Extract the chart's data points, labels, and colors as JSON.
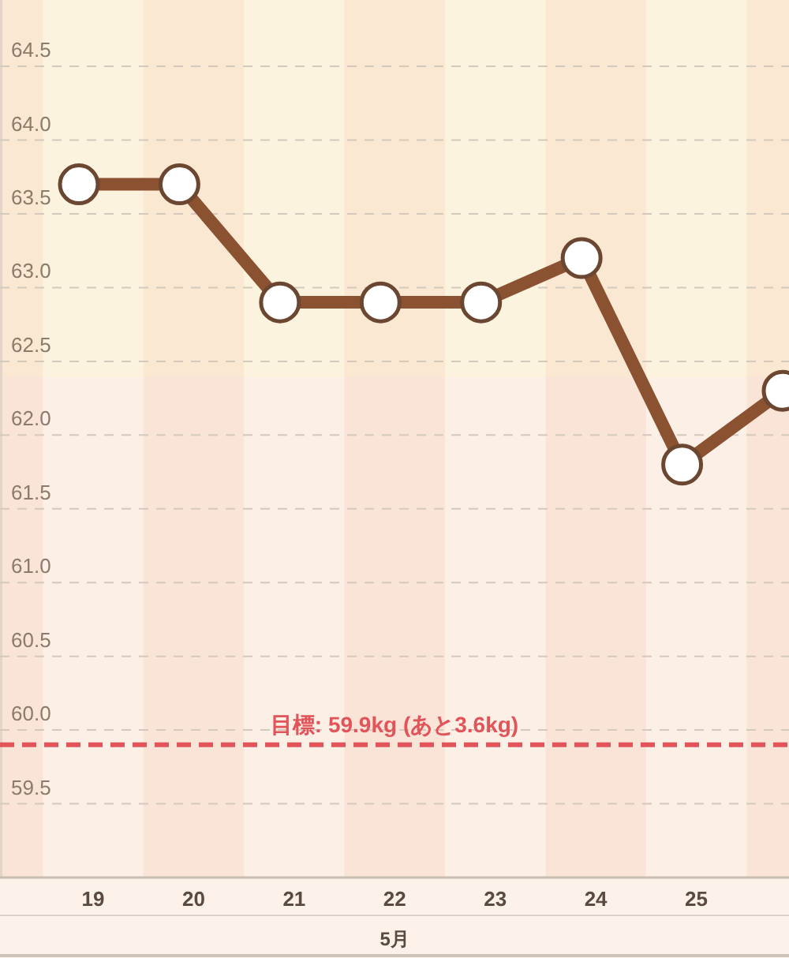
{
  "chart_data": {
    "type": "line",
    "categories": [
      "19",
      "20",
      "21",
      "22",
      "23",
      "24",
      "25",
      null
    ],
    "xlabel": "5月",
    "series": [
      {
        "color": "#8b5232",
        "values": [
          63.7,
          63.7,
          62.9,
          62.9,
          62.9,
          63.2,
          61.8,
          62.3
        ]
      }
    ],
    "ylim": [
      59.0,
      64.95
    ],
    "yticks": [
      59.5,
      {
        "value": 60,
        "label": "60.0"
      },
      60.5,
      {
        "value": 61,
        "label": "61.0"
      },
      61.5,
      {
        "value": 62,
        "label": "62.0"
      },
      62.5,
      {
        "value": 63,
        "label": "63.0"
      },
      63.5,
      {
        "value": 64,
        "label": "64.0"
      },
      64.5
    ],
    "grid": "y",
    "marker": "circle",
    "line_style": "solid",
    "ref_lines": [
      {
        "axis": "y",
        "value": 59.9,
        "label": "目標: 59.9kg (あと3.6kg)",
        "color": "#e0545a",
        "line_style": "dashed"
      }
    ]
  }
}
